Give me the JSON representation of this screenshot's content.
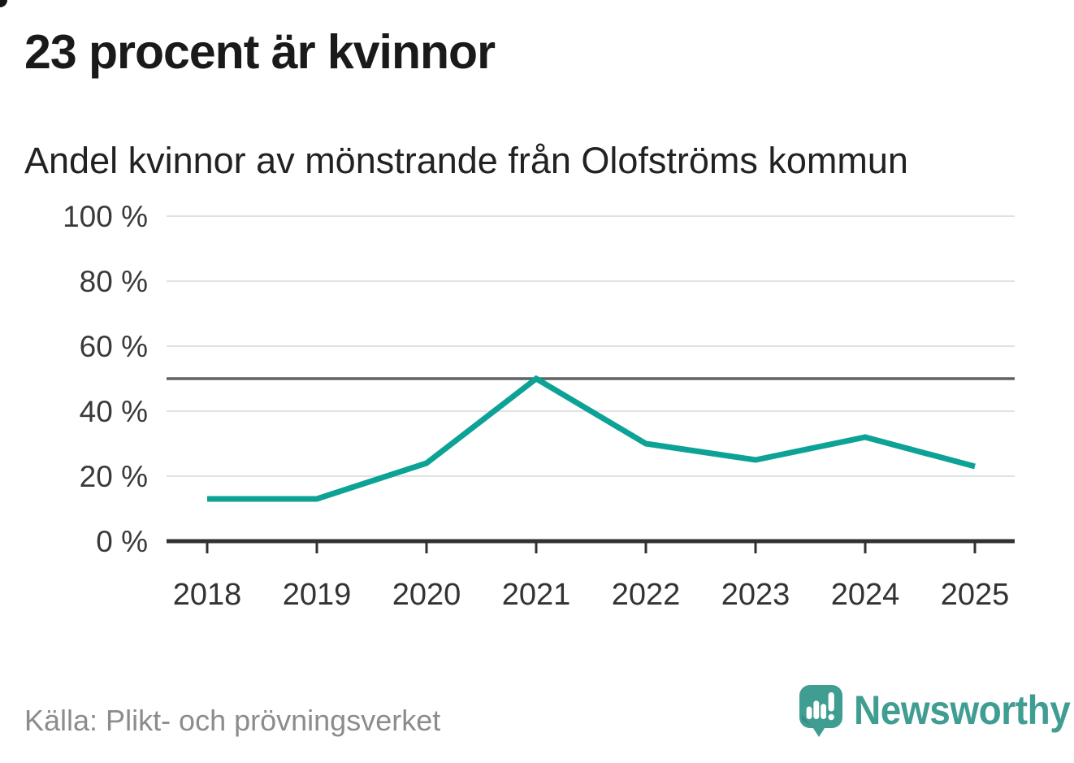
{
  "header": {
    "title": "23 procent är kvinnor",
    "subtitle": "Andel kvinnor av mönstrande från Olofströms kommun"
  },
  "chart_data": {
    "type": "line",
    "title": "Andel kvinnor av mönstrande från Olofströms kommun",
    "categories": [
      "2018",
      "2019",
      "2020",
      "2021",
      "2022",
      "2023",
      "2024",
      "2025"
    ],
    "values": [
      13,
      13,
      24,
      50,
      30,
      25,
      32,
      23
    ],
    "unit": "%",
    "xlabel": "",
    "ylabel": "",
    "ylim": [
      0,
      100
    ],
    "yticks": [
      0,
      20,
      40,
      60,
      80,
      100
    ],
    "ytick_labels": [
      "0 %",
      "20 %",
      "40 %",
      "60 %",
      "80 %",
      "100 %"
    ],
    "reference_line": 50,
    "grid": true,
    "legend": false,
    "line_color": "#0CA295",
    "reference_color": "#5F6266"
  },
  "footer": {
    "source": "Källa: Plikt- och prövningsverket",
    "brand": "Newsworthy"
  },
  "colors": {
    "accent_teal": "#0CA295",
    "brand_teal": "#3F9D92",
    "text_dark": "#1A1A1A",
    "axis_label_gray": "#3A3A3A",
    "source_gray": "#8C8C8C",
    "grid_gray": "#E1E1E1",
    "axis_dark": "#2F3133"
  }
}
